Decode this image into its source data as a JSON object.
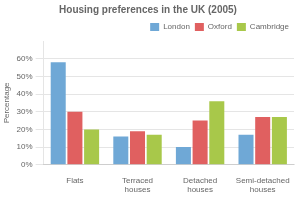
{
  "chart_data": {
    "type": "bar",
    "title": "Housing preferences in the UK (2005)",
    "categories": [
      "Flats",
      "Terraced\nhouses",
      "Detached\nhouses",
      "Semi-detached\nhouses"
    ],
    "series": [
      {
        "name": "London",
        "color": "#6FA8D6",
        "values": [
          58,
          16,
          10,
          17
        ]
      },
      {
        "name": "Oxford",
        "color": "#E06060",
        "values": [
          30,
          19,
          25,
          27
        ]
      },
      {
        "name": "Cambridge",
        "color": "#A8C84A",
        "values": [
          20,
          17,
          36,
          27
        ]
      }
    ],
    "ylabel": "Percentage",
    "ylim": [
      0,
      70
    ],
    "yticks": [
      {
        "value": 0,
        "label": "0%"
      },
      {
        "value": 10,
        "label": "10%"
      },
      {
        "value": 20,
        "label": "20%"
      },
      {
        "value": 30,
        "label": "30%"
      },
      {
        "value": 40,
        "label": "40%"
      },
      {
        "value": 50,
        "label": "50%"
      },
      {
        "value": 60,
        "label": "60%"
      }
    ],
    "grid": true,
    "legend": "upper right"
  }
}
